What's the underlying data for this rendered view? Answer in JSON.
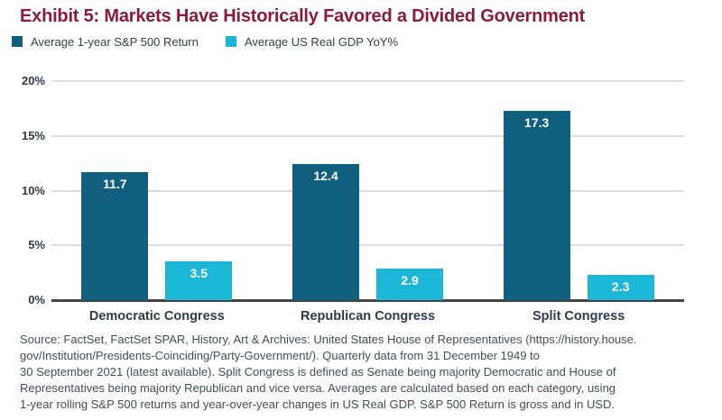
{
  "title": "Exhibit 5: Markets Have Historically Favored a Divided Government",
  "colors": {
    "title": "#8D1B3D",
    "series1": "#115F7F",
    "series2": "#1CB6D6",
    "text": "#33404D",
    "gridline": "#DDDDDD",
    "axis_line": "#444444",
    "bar_label": "#FFFFFF"
  },
  "legend": [
    {
      "label": "Average 1-year S&P 500 Return",
      "color": "#115F7F"
    },
    {
      "label": "Average US Real GDP YoY%",
      "color": "#1CB6D6"
    }
  ],
  "chart_data": {
    "type": "bar",
    "categories": [
      "Democratic Congress",
      "Republican Congress",
      "Split Congress"
    ],
    "series": [
      {
        "name": "Average 1-year S&P 500 Return",
        "color": "#115F7F",
        "values": [
          11.7,
          12.4,
          17.3
        ]
      },
      {
        "name": "Average US Real GDP YoY%",
        "color": "#1CB6D6",
        "values": [
          3.5,
          2.9,
          2.3
        ]
      }
    ],
    "ylim": [
      0,
      20
    ],
    "ytick_values": [
      0,
      5,
      10,
      15,
      20
    ],
    "ytick_labels": [
      "0%",
      "5%",
      "10%",
      "15%",
      "20%"
    ],
    "grid": true,
    "legend_position": "top",
    "data_labels": true
  },
  "source": {
    "text": "Source: FactSet, FactSet SPAR, History, Art & Archives: United States House of Representatives (https://history.house.\ngov/Institution/Presidents-Coinciding/Party-Government/). Quarterly data from 31 December 1949 to\n30 September 2021 (latest available). Split Congress is defined as Senate being majority Democratic and House of\nRepresentatives being majority Republican and vice versa. Averages are calculated based on each category, using\n1-year rolling S&P 500 returns and year-over-year changes in US Real GDP. S&P 500 Return is gross and in USD."
  }
}
